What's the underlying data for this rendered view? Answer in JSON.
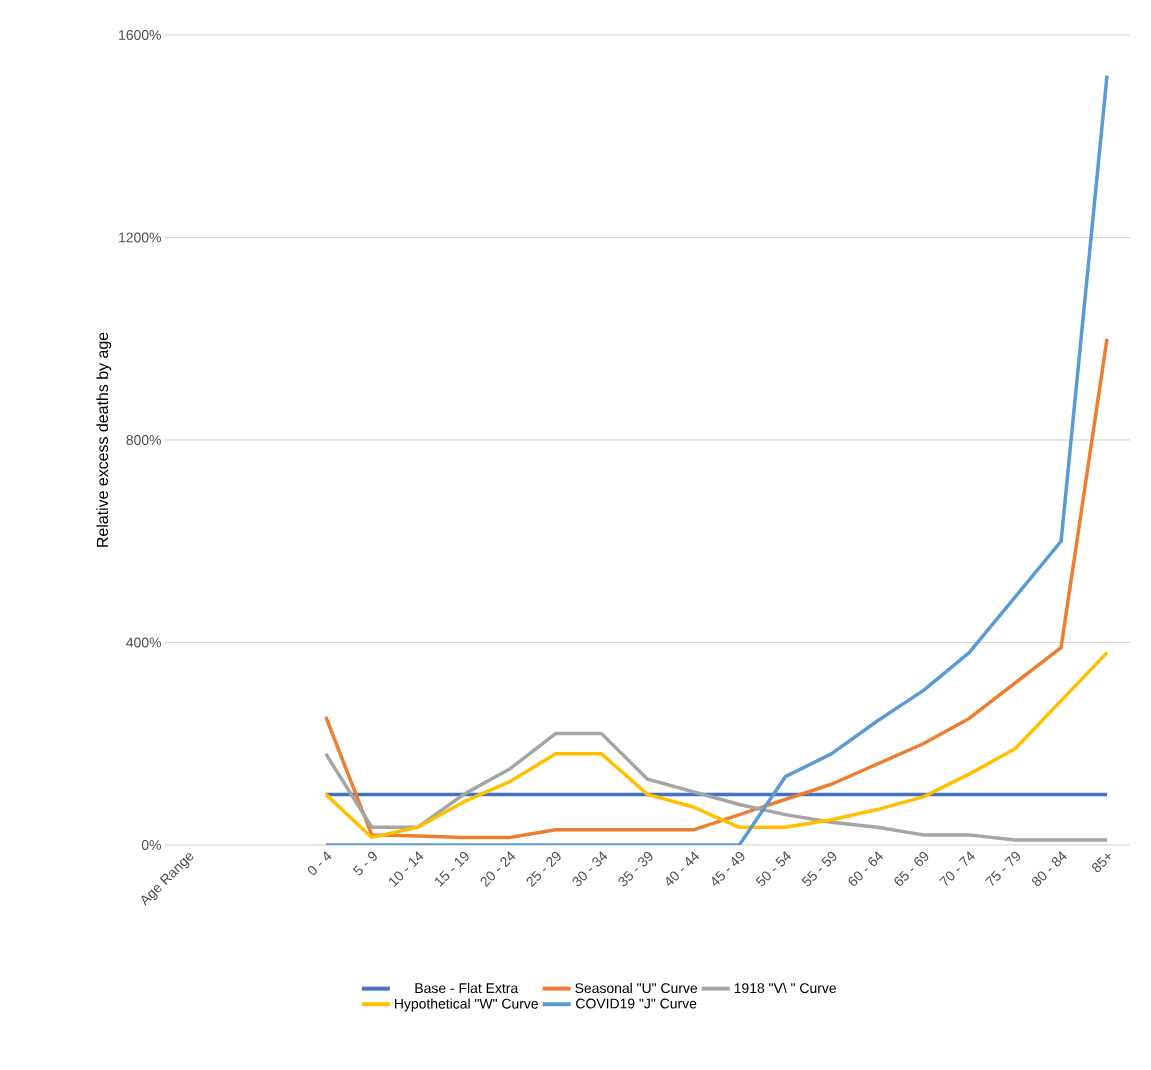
{
  "chart_data": {
    "type": "line",
    "ylabel": "Relative excess deaths by age",
    "categories": [
      "Age Range",
      null,
      null,
      "0 - 4",
      "5 - 9",
      "10 - 14",
      "15 - 19",
      "20 - 24",
      "25 - 29",
      "30 - 34",
      "35 - 39",
      "40 - 44",
      "45 - 49",
      "50 - 54",
      "55 - 59",
      "60 - 64",
      "65 - 69",
      "70 - 74",
      "75 - 79",
      "80 - 84",
      "85+"
    ],
    "series": [
      {
        "name": "Base - Flat Extra",
        "color": "#4472c4",
        "values": [
          null,
          null,
          null,
          100,
          100,
          100,
          100,
          100,
          100,
          100,
          100,
          100,
          100,
          100,
          100,
          100,
          100,
          100,
          100,
          100,
          100
        ]
      },
      {
        "name": "Seasonal \"U\" Curve",
        "color": "#ed7d31",
        "values": [
          null,
          null,
          null,
          253,
          20,
          18,
          15,
          15,
          30,
          30,
          30,
          30,
          60,
          90,
          120,
          160,
          200,
          250,
          320,
          390,
          1000
        ]
      },
      {
        "name": "1918 \"V\\ \" Curve",
        "color": "#a5a5a5",
        "values": [
          null,
          null,
          null,
          180,
          35,
          35,
          100,
          150,
          220,
          220,
          130,
          105,
          80,
          60,
          45,
          35,
          20,
          20,
          10,
          10,
          10
        ]
      },
      {
        "name": "Hypothetical \"W\" Curve",
        "color": "#ffc000",
        "values": [
          null,
          null,
          null,
          100,
          15,
          35,
          85,
          125,
          180,
          180,
          100,
          75,
          35,
          35,
          50,
          70,
          95,
          140,
          190,
          285,
          380
        ]
      },
      {
        "name": "COVID19 \"J\" Curve",
        "color": "#5b9bd5",
        "values": [
          null,
          null,
          null,
          0,
          0,
          0,
          0,
          0,
          0,
          0,
          0,
          0,
          0,
          135,
          180,
          245,
          305,
          380,
          490,
          600,
          1520
        ]
      }
    ],
    "ylim": [
      0,
      1600
    ],
    "yticks": [
      {
        "value": 0,
        "label": "0%"
      },
      {
        "value": 400,
        "label": "400%"
      },
      {
        "value": 800,
        "label": "800%"
      },
      {
        "value": 1200,
        "label": "1200%"
      },
      {
        "value": 1600,
        "label": "1600%"
      }
    ],
    "grid": "y",
    "legend": "bottom"
  }
}
